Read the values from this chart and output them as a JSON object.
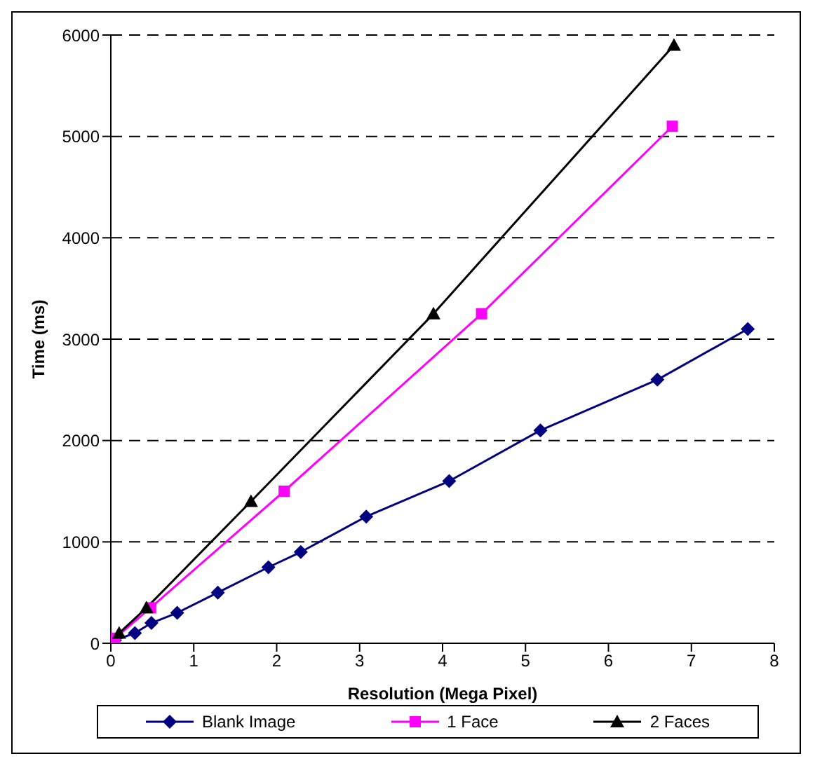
{
  "chart_data": {
    "type": "line",
    "xlabel": "Resolution (Mega Pixel)",
    "ylabel": "Time (ms)",
    "xlim": [
      0,
      8
    ],
    "xticks": [
      0,
      1,
      2,
      3,
      4,
      5,
      6,
      7,
      8
    ],
    "ylim": [
      0,
      6000
    ],
    "yticks": [
      0,
      1000,
      2000,
      3000,
      4000,
      5000,
      6000
    ],
    "grid": "y",
    "legend": "bottom",
    "series": [
      {
        "name": "Blank Image",
        "color": "#000080",
        "marker": "diamond",
        "x": [
          0.05,
          0.29,
          0.49,
          0.8,
          1.29,
          1.9,
          2.29,
          3.08,
          4.08,
          5.18,
          6.59,
          7.68
        ],
        "values": [
          30,
          100,
          200,
          300,
          500,
          750,
          900,
          1250,
          1600,
          2100,
          2600,
          3100
        ]
      },
      {
        "name": "1 Face",
        "color": "#ff00ff",
        "marker": "square",
        "x": [
          0.05,
          0.48,
          2.09,
          4.47,
          6.77
        ],
        "values": [
          50,
          350,
          1500,
          3250,
          5100
        ]
      },
      {
        "name": "2 Faces",
        "color": "#000000",
        "marker": "triangle",
        "x": [
          0.1,
          0.43,
          1.69,
          3.89,
          6.79
        ],
        "values": [
          100,
          350,
          1400,
          3250,
          5900
        ]
      }
    ]
  }
}
